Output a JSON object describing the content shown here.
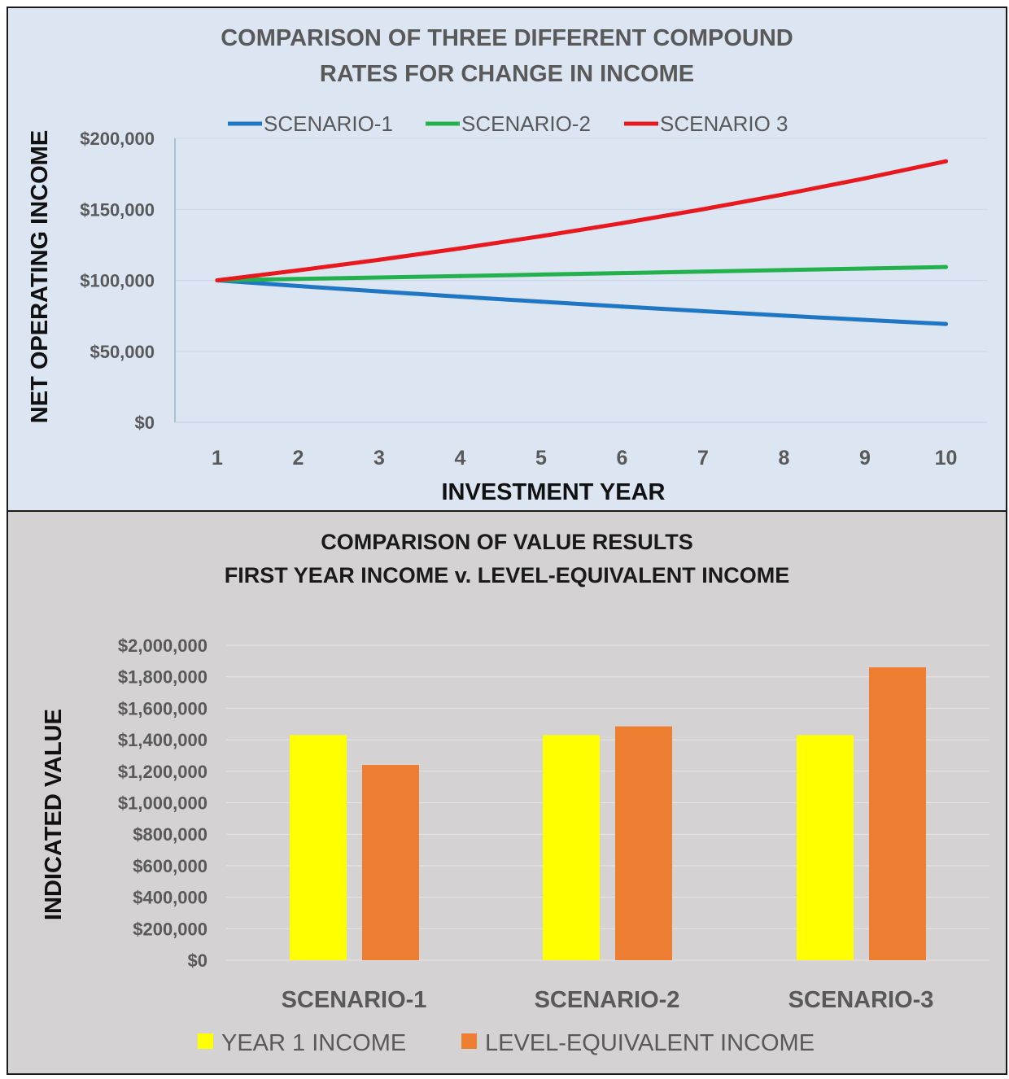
{
  "chart_data": [
    {
      "type": "line",
      "title": "COMPARISON OF THREE DIFFERENT COMPOUND RATES FOR CHANGE IN INCOME",
      "title_lines": [
        "COMPARISON OF THREE DIFFERENT COMPOUND",
        "RATES FOR CHANGE IN INCOME"
      ],
      "xlabel": "INVESTMENT YEAR",
      "ylabel": "NET OPERATING INCOME",
      "x": [
        1,
        2,
        3,
        4,
        5,
        6,
        7,
        8,
        9,
        10
      ],
      "ylim": [
        0,
        200000
      ],
      "ytick_labels": [
        "$0",
        "$50,000",
        "$100,000",
        "$150,000",
        "$200,000"
      ],
      "ytick_values": [
        0,
        50000,
        100000,
        150000,
        200000
      ],
      "grid": true,
      "legend_position": "top",
      "series": [
        {
          "name": "SCENARIO-1",
          "color": "#1f77c4",
          "values": [
            100000,
            96000,
            92160,
            88474,
            84935,
            81537,
            78276,
            75145,
            72139,
            69253
          ]
        },
        {
          "name": "SCENARIO-2",
          "color": "#22b14c",
          "values": [
            100000,
            101000,
            102010,
            103030,
            104060,
            105101,
            106152,
            107214,
            108286,
            109369
          ]
        },
        {
          "name": "SCENARIO 3",
          "color": "#e8181f",
          "values": [
            100000,
            107000,
            114490,
            122504,
            131080,
            140255,
            150073,
            160578,
            171819,
            183846
          ]
        }
      ]
    },
    {
      "type": "bar",
      "title": "COMPARISON OF VALUE RESULTS FIRST YEAR INCOME v. LEVEL-EQUIVALENT INCOME",
      "title_lines": [
        "COMPARISON OF VALUE RESULTS",
        "FIRST YEAR INCOME v. LEVEL-EQUIVALENT INCOME"
      ],
      "xlabel": "",
      "ylabel": "INDICATED VALUE",
      "categories": [
        "SCENARIO-1",
        "SCENARIO-2",
        "SCENARIO-3"
      ],
      "ylim": [
        0,
        2000000
      ],
      "ytick_labels": [
        "$0",
        "$200,000",
        "$400,000",
        "$600,000",
        "$800,000",
        "$1,000,000",
        "$1,200,000",
        "$1,400,000",
        "$1,600,000",
        "$1,800,000",
        "$2,000,000"
      ],
      "ytick_values": [
        0,
        200000,
        400000,
        600000,
        800000,
        1000000,
        1200000,
        1400000,
        1600000,
        1800000,
        2000000
      ],
      "grid": true,
      "legend_position": "bottom",
      "series": [
        {
          "name": "YEAR 1 INCOME",
          "color": "#ffff00",
          "values": [
            1430000,
            1430000,
            1430000
          ]
        },
        {
          "name": "LEVEL-EQUIVALENT INCOME",
          "color": "#ed7d31",
          "values": [
            1240000,
            1485000,
            1860000
          ]
        }
      ]
    }
  ]
}
